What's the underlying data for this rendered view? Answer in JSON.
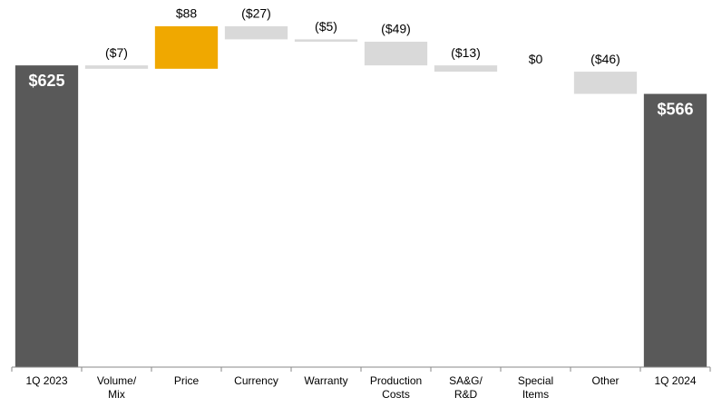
{
  "chart_data": {
    "type": "waterfall",
    "categories": [
      [
        "1Q 2023"
      ],
      [
        "Volume/",
        "Mix"
      ],
      [
        "Price"
      ],
      [
        "Currency"
      ],
      [
        "Warranty"
      ],
      [
        "Production",
        "Costs"
      ],
      [
        "SA&G/",
        "R&D"
      ],
      [
        "Special",
        "Items"
      ],
      [
        "Other"
      ],
      [
        "1Q 2024"
      ]
    ],
    "values": [
      625,
      -7,
      88,
      -27,
      -5,
      -49,
      -13,
      0,
      -46,
      566
    ],
    "value_labels": [
      "$625",
      "($7)",
      "$88",
      "($27)",
      "($5)",
      "($49)",
      "($13)",
      "$0",
      "($46)",
      "$566"
    ],
    "measure": [
      "total",
      "relative",
      "relative",
      "relative",
      "relative",
      "relative",
      "relative",
      "relative",
      "relative",
      "total"
    ],
    "colors": {
      "total": "#595959",
      "increase": "#f0a800",
      "decrease": "#d9d9d9"
    }
  }
}
